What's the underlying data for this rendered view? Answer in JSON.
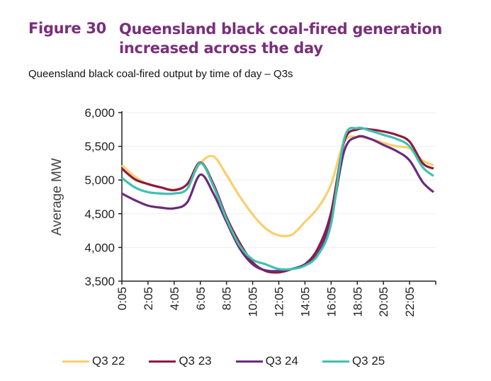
{
  "figure_number": "Figure 30",
  "figure_title": "Queensland black coal-fired generation increased across the day",
  "chart_data": {
    "type": "line",
    "title": "Queensland black coal-fired output by time of day – Q3s",
    "xlabel": "",
    "ylabel": "Average MW",
    "ylim": [
      3500,
      6000
    ],
    "yticks": [
      "3,500",
      "4,000",
      "4,500",
      "5,000",
      "5,500",
      "6,000"
    ],
    "xtick_labels": [
      "0:05",
      "2:05",
      "4:05",
      "6:05",
      "8:05",
      "10:05",
      "12:05",
      "14:05",
      "16:05",
      "18:05",
      "20:05",
      "22:05"
    ],
    "x": [
      "0:05",
      "1:05",
      "2:05",
      "3:05",
      "4:05",
      "5:05",
      "6:05",
      "7:05",
      "8:05",
      "9:05",
      "10:05",
      "11:05",
      "12:05",
      "13:05",
      "14:05",
      "15:05",
      "16:05",
      "17:05",
      "18:05",
      "19:05",
      "20:05",
      "21:05",
      "22:05",
      "23:05",
      "23:55"
    ],
    "grid": "horizontal",
    "legend_position": "bottom",
    "series": [
      {
        "name": "Q3 22",
        "color": "#F9CF6E",
        "values": [
          5220,
          5050,
          4940,
          4890,
          4855,
          4940,
          5250,
          5350,
          5075,
          4760,
          4490,
          4280,
          4180,
          4190,
          4380,
          4590,
          4940,
          5570,
          5640,
          5610,
          5550,
          5500,
          5470,
          5290,
          5220
        ]
      },
      {
        "name": "Q3 23",
        "color": "#8E1B3E",
        "values": [
          5170,
          5010,
          4940,
          4890,
          4850,
          4940,
          5260,
          4940,
          4450,
          4070,
          3780,
          3650,
          3630,
          3680,
          3750,
          3990,
          4520,
          5570,
          5750,
          5750,
          5720,
          5670,
          5570,
          5250,
          5170
        ]
      },
      {
        "name": "Q3 24",
        "color": "#6B2A7C",
        "values": [
          4800,
          4700,
          4620,
          4590,
          4580,
          4670,
          5080,
          4800,
          4380,
          3990,
          3750,
          3660,
          3650,
          3680,
          3750,
          3920,
          4420,
          5430,
          5640,
          5610,
          5520,
          5430,
          5290,
          4970,
          4820
        ]
      },
      {
        "name": "Q3 25",
        "color": "#3EC1AE",
        "values": [
          5030,
          4890,
          4820,
          4800,
          4800,
          4870,
          5250,
          4910,
          4420,
          4030,
          3820,
          3750,
          3680,
          3680,
          3730,
          3890,
          4350,
          5610,
          5770,
          5730,
          5670,
          5610,
          5500,
          5190,
          5060
        ]
      }
    ]
  }
}
